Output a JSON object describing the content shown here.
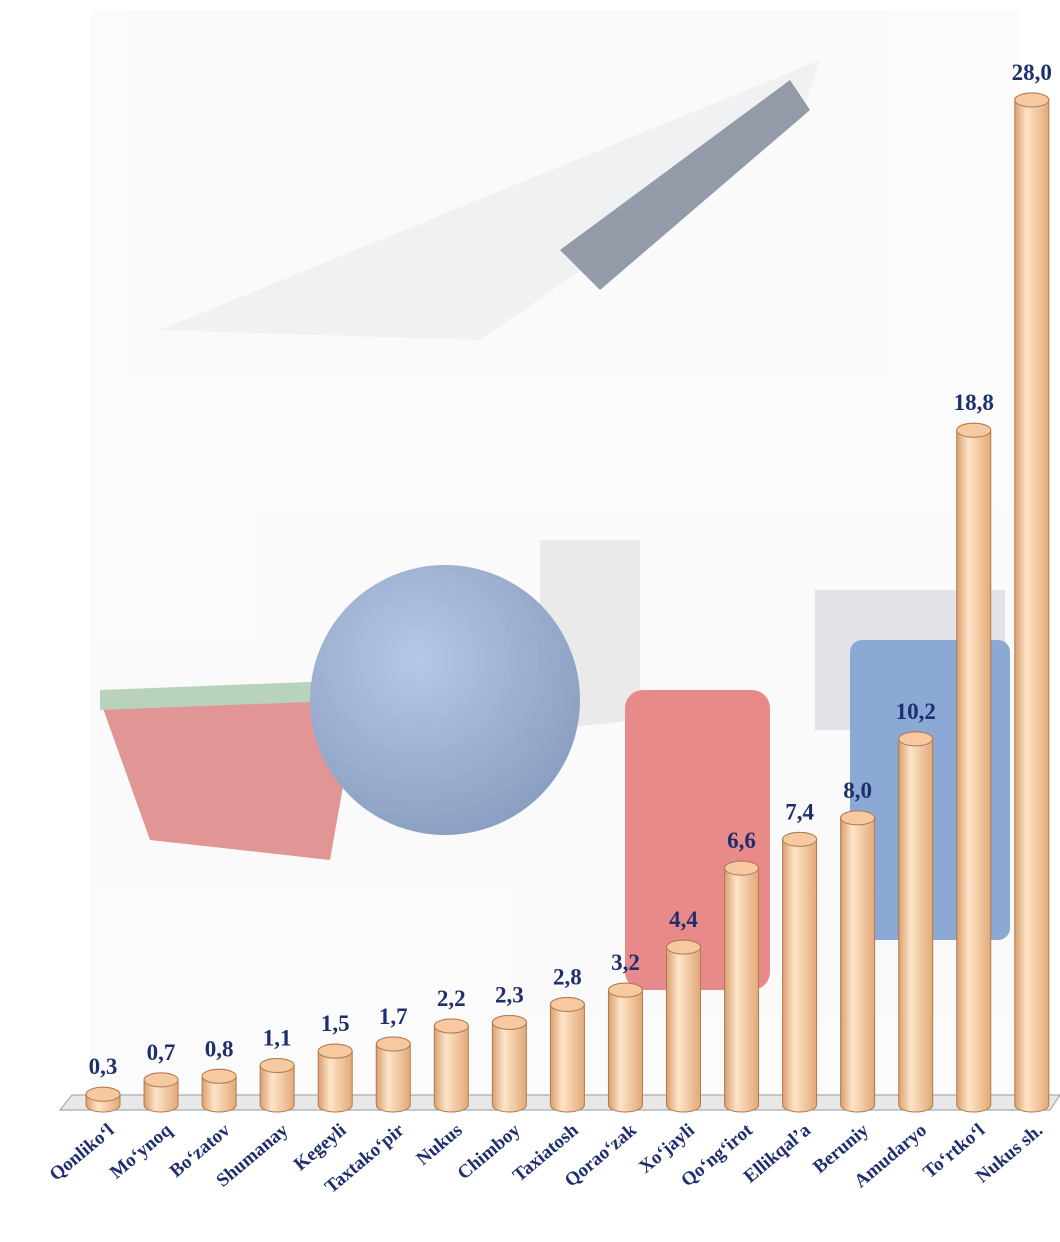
{
  "chart_data": {
    "type": "bar",
    "categories": [
      "Qonliko‘l",
      "Mo‘ynoq",
      "Bo‘zatov",
      "Shumanay",
      "Kegeyli",
      "Taxtako‘pir",
      "Nukus",
      "Chimboy",
      "Taxiatosh",
      "Qorao‘zak",
      "Xo‘jayli",
      "Qo‘ng‘irot",
      "Ellikqal’a",
      "Beruniy",
      "Amudaryo",
      "To‘rtko‘l",
      "Nukus sh."
    ],
    "values": [
      0.3,
      0.7,
      0.8,
      1.1,
      1.5,
      1.7,
      2.2,
      2.3,
      2.8,
      3.2,
      4.4,
      6.6,
      7.4,
      8.0,
      10.2,
      18.8,
      28.0
    ],
    "value_labels": [
      "0,3",
      "0,7",
      "0,8",
      "1,1",
      "1,5",
      "1,7",
      "2,2",
      "2,3",
      "2,8",
      "3,2",
      "4,4",
      "6,6",
      "7,4",
      "8,0",
      "10,2",
      "18,8",
      "28,0"
    ],
    "color": "#f6c9a0"
  }
}
